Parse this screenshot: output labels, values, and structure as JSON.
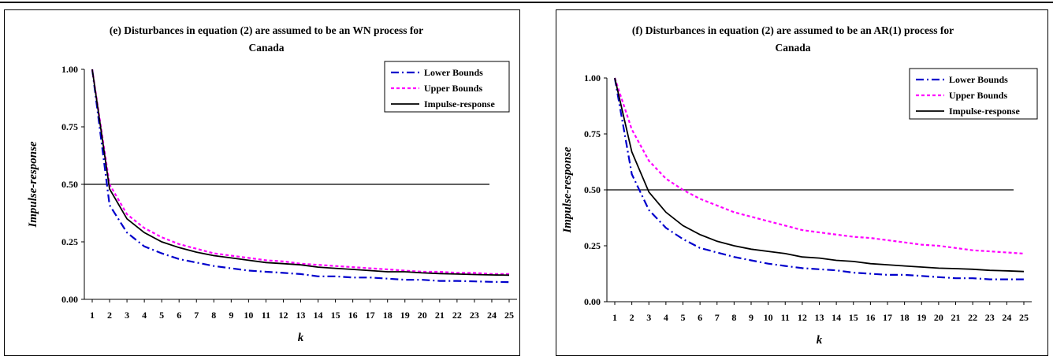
{
  "chart_data": [
    {
      "type": "line",
      "title": "(e) Disturbances in equation (2) are assumed to be an WN process for",
      "subtitle": "Canada",
      "xlabel": "k",
      "ylabel": "Impulse-response",
      "x": [
        1,
        2,
        3,
        4,
        5,
        6,
        7,
        8,
        9,
        10,
        11,
        12,
        13,
        14,
        15,
        16,
        17,
        18,
        19,
        20,
        21,
        22,
        23,
        24,
        25
      ],
      "ylim": [
        0,
        1
      ],
      "yticks": [
        "0.00",
        "0.25",
        "0.50",
        "0.75",
        "1.00"
      ],
      "reference_line": 0.5,
      "legend_position": "top-right",
      "series": [
        {
          "name": "Lower Bounds",
          "color": "#0000cc",
          "style": "dash-dot",
          "values": [
            1.0,
            0.41,
            0.29,
            0.23,
            0.2,
            0.175,
            0.16,
            0.145,
            0.135,
            0.125,
            0.12,
            0.115,
            0.11,
            0.1,
            0.1,
            0.095,
            0.095,
            0.09,
            0.085,
            0.085,
            0.08,
            0.08,
            0.078,
            0.076,
            0.075
          ]
        },
        {
          "name": "Upper Bounds",
          "color": "#ff00ff",
          "style": "dotted",
          "values": [
            1.0,
            0.5,
            0.37,
            0.31,
            0.27,
            0.24,
            0.22,
            0.2,
            0.19,
            0.18,
            0.17,
            0.165,
            0.155,
            0.15,
            0.145,
            0.14,
            0.135,
            0.13,
            0.125,
            0.12,
            0.12,
            0.115,
            0.115,
            0.11,
            0.11
          ]
        },
        {
          "name": "Impulse-response",
          "color": "#000000",
          "style": "solid",
          "values": [
            1.0,
            0.48,
            0.35,
            0.29,
            0.25,
            0.225,
            0.205,
            0.19,
            0.18,
            0.17,
            0.16,
            0.155,
            0.15,
            0.14,
            0.135,
            0.13,
            0.125,
            0.12,
            0.12,
            0.115,
            0.112,
            0.11,
            0.108,
            0.106,
            0.105
          ]
        }
      ]
    },
    {
      "type": "line",
      "title": "(f) Disturbances in equation (2) are assumed to be an AR(1) process for",
      "subtitle": "Canada",
      "xlabel": "k",
      "ylabel": "Impulse-response",
      "x": [
        1,
        2,
        3,
        4,
        5,
        6,
        7,
        8,
        9,
        10,
        11,
        12,
        13,
        14,
        15,
        16,
        17,
        18,
        19,
        20,
        21,
        22,
        23,
        24,
        25
      ],
      "ylim": [
        0,
        1
      ],
      "yticks": [
        "0.00",
        "0.25",
        "0.50",
        "0.75",
        "1.00"
      ],
      "reference_line": 0.5,
      "legend_position": "top-right",
      "series": [
        {
          "name": "Lower Bounds",
          "color": "#0000cc",
          "style": "dash-dot",
          "values": [
            1.0,
            0.57,
            0.41,
            0.33,
            0.28,
            0.24,
            0.22,
            0.2,
            0.185,
            0.17,
            0.16,
            0.15,
            0.145,
            0.14,
            0.13,
            0.125,
            0.12,
            0.12,
            0.115,
            0.11,
            0.105,
            0.105,
            0.1,
            0.1,
            0.1
          ]
        },
        {
          "name": "Upper Bounds",
          "color": "#ff00ff",
          "style": "dotted",
          "values": [
            1.0,
            0.77,
            0.63,
            0.55,
            0.5,
            0.46,
            0.43,
            0.4,
            0.38,
            0.36,
            0.34,
            0.32,
            0.31,
            0.3,
            0.29,
            0.285,
            0.275,
            0.265,
            0.255,
            0.25,
            0.24,
            0.23,
            0.225,
            0.22,
            0.215
          ]
        },
        {
          "name": "Impulse-response",
          "color": "#000000",
          "style": "solid",
          "values": [
            1.0,
            0.67,
            0.49,
            0.4,
            0.34,
            0.3,
            0.27,
            0.25,
            0.235,
            0.225,
            0.215,
            0.2,
            0.195,
            0.185,
            0.18,
            0.17,
            0.165,
            0.16,
            0.155,
            0.15,
            0.148,
            0.145,
            0.14,
            0.138,
            0.135
          ]
        }
      ]
    }
  ]
}
